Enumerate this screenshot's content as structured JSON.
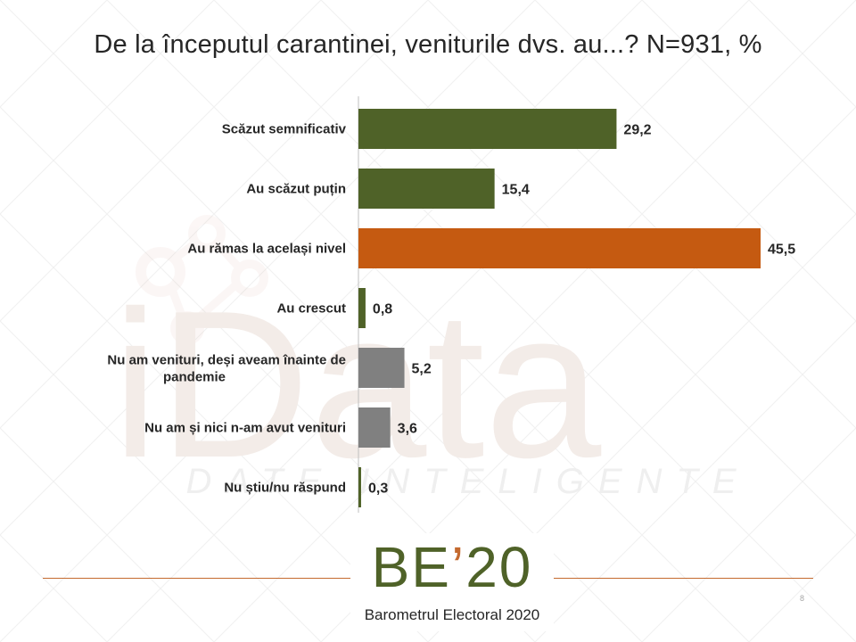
{
  "title": "De la începutul carantinei, veniturile dvs. au...? N=931, %",
  "colors": {
    "green": "#4f6228",
    "orange": "#c55a11",
    "gray": "#808080",
    "accent_line": "#c46a2f"
  },
  "chart_data": {
    "type": "bar",
    "orientation": "horizontal",
    "title": "De la începutul carantinei, veniturile dvs. au...? N=931, %",
    "categories": [
      "Scăzut semnificativ",
      "Au scăzut puțin",
      "Au rămas la același nivel",
      "Au crescut",
      "Nu am venituri, deși aveam înainte de pandemie",
      "Nu am și nici n-am avut venituri",
      "Nu știu/nu răspund"
    ],
    "values": [
      29.2,
      15.4,
      45.5,
      0.8,
      5.2,
      3.6,
      0.3
    ],
    "value_labels": [
      "29,2",
      "15,4",
      "45,5",
      "0,8",
      "5,2",
      "3,6",
      "0,3"
    ],
    "bar_colors": [
      "#4f6228",
      "#4f6228",
      "#c55a11",
      "#4f6228",
      "#808080",
      "#808080",
      "#4f6228"
    ],
    "xlim": [
      0,
      50
    ],
    "grid": false,
    "legend": "none"
  },
  "watermark": {
    "text": "iData",
    "tagline": "DATE INTELIGENTE"
  },
  "logo": {
    "big_prefix": "BE",
    "big_accent": "’",
    "big_suffix": "20",
    "subtitle": "Barometrul Electoral 2020"
  },
  "page_number": "8"
}
